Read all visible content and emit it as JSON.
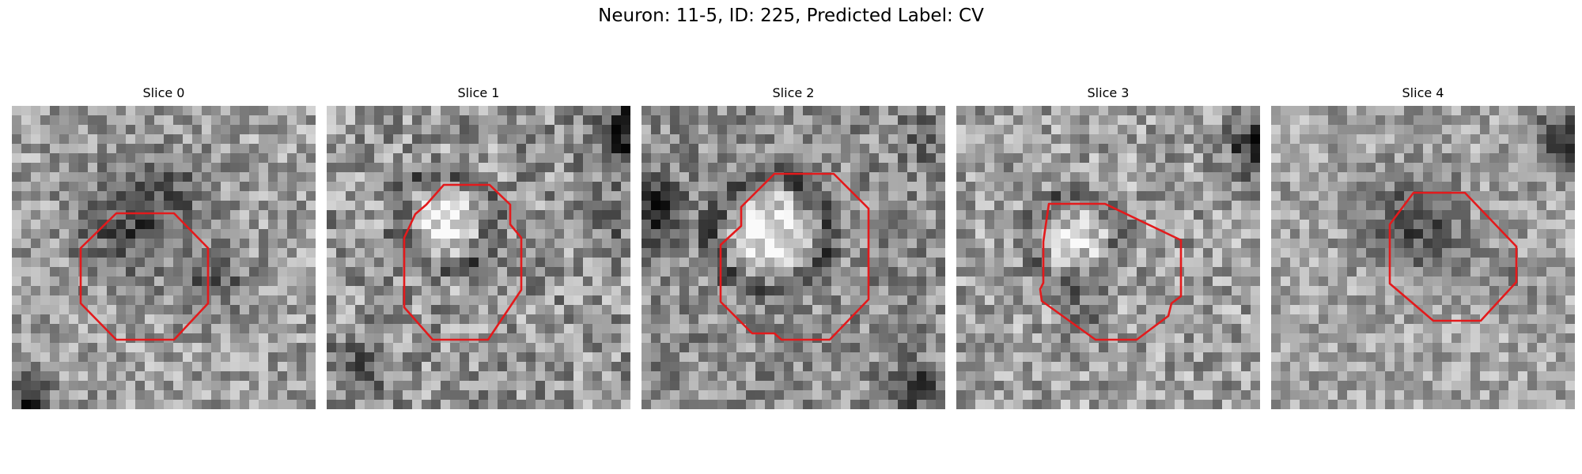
{
  "figure": {
    "title": "Neuron: 11-5, ID: 225, Predicted Label: CV"
  },
  "style": {
    "roi_color": "#e31a1c",
    "colormap": "gray"
  },
  "panels": [
    {
      "title": "Slice 0",
      "roi_shape": "dark-blob-octagon",
      "center_tone": "dark",
      "ring_tone": "none"
    },
    {
      "title": "Slice 1",
      "roi_shape": "bright-vesicle-octagon",
      "center_tone": "bright",
      "ring_tone": "dark"
    },
    {
      "title": "Slice 2",
      "roi_shape": "bright-vesicle-octagon",
      "center_tone": "bright",
      "ring_tone": "dark"
    },
    {
      "title": "Slice 3",
      "roi_shape": "bright-vesicle-octagon",
      "center_tone": "mid-bright",
      "ring_tone": "dark"
    },
    {
      "title": "Slice 4",
      "roi_shape": "dark-blob-octagon",
      "center_tone": "dark",
      "ring_tone": "none"
    }
  ]
}
